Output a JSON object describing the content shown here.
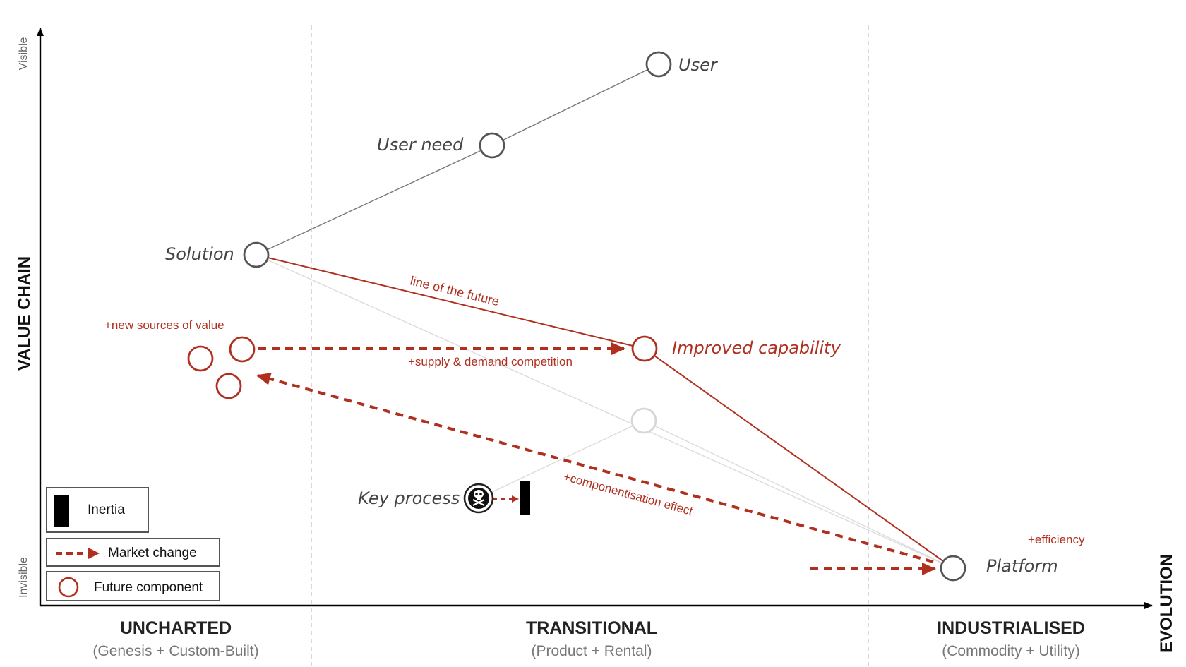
{
  "axes": {
    "y_title": "VALUE CHAIN",
    "y_top": "Visible",
    "y_bottom": "Invisible",
    "x_title": "EVOLUTION"
  },
  "stages": [
    {
      "name": "UNCHARTED",
      "sub": "(Genesis + Custom-Built)"
    },
    {
      "name": "TRANSITIONAL",
      "sub": "(Product + Rental)"
    },
    {
      "name": "INDUSTRIALISED",
      "sub": "(Commodity + Utility)"
    }
  ],
  "components": {
    "user": "User",
    "user_need": "User need",
    "solution": "Solution",
    "improved_capability": "Improved capability",
    "key_process": "Key process",
    "platform": "Platform"
  },
  "annotations": {
    "line_of_future": "line of the future",
    "new_sources": "+new sources of value",
    "supply_demand": "+supply & demand competition",
    "componentisation": "+componentisation effect",
    "efficiency": "+efficiency"
  },
  "legend": {
    "inertia": "Inertia",
    "market_change": "Market change",
    "future_component": "Future component"
  },
  "colors": {
    "accent": "#b03020",
    "grey": "#555555",
    "faint": "#d6d6d6"
  }
}
